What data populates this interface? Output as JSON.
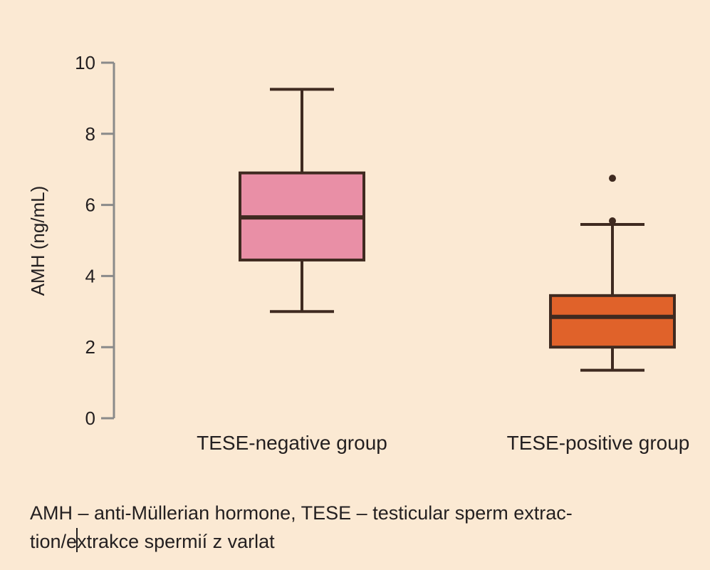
{
  "chart_data": {
    "type": "box",
    "ylabel": "AMH (ng/mL)",
    "ylim": [
      0,
      10
    ],
    "yticks": [
      0,
      2,
      4,
      6,
      8,
      10
    ],
    "groups": [
      {
        "label": "TESE-negative group",
        "whisker_low": 3.0,
        "q1": 4.45,
        "median": 5.65,
        "q3": 6.9,
        "whisker_high": 9.25,
        "outliers": [],
        "color": "#e98fa6"
      },
      {
        "label": "TESE-positive group",
        "whisker_low": 1.35,
        "q1": 2.0,
        "median": 2.85,
        "q3": 3.45,
        "whisker_high": 5.45,
        "outliers": [
          5.55,
          6.75
        ],
        "color": "#e0622a"
      }
    ]
  },
  "caption": {
    "line1": "AMH – anti-Müllerian hormone, TESE – testicular sperm extrac-",
    "line2_a": "tion/e",
    "line2_b": "xtrakce spermií z varlat"
  }
}
